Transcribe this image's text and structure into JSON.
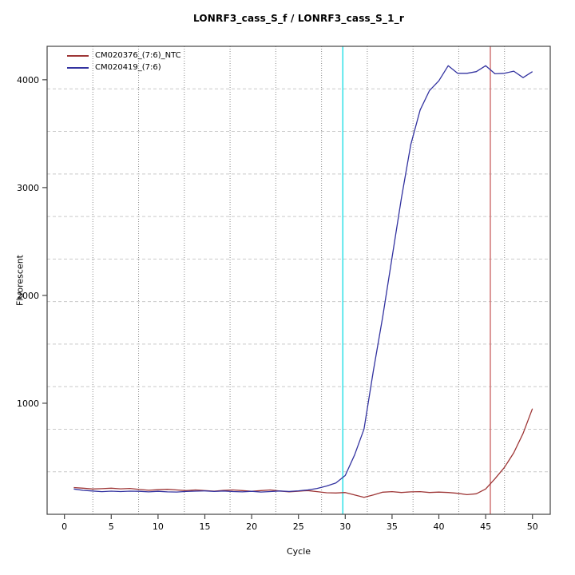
{
  "chart_data": {
    "type": "line",
    "title": "LONRF3_cass_S_f / LONRF3_cass_S_1_r",
    "xlabel": "Cycle",
    "ylabel": "Fluorescent",
    "xlim": [
      -1.85,
      51.9
    ],
    "ylim": [
      -30,
      4310
    ],
    "xticks": [
      0,
      5,
      10,
      15,
      20,
      25,
      30,
      35,
      40,
      45,
      50
    ],
    "yticks": [
      1000,
      2000,
      3000,
      4000
    ],
    "grid": {
      "shown": true,
      "nx_cells": 11,
      "ny_cells": 11,
      "vertical_style": "dotted",
      "horizontal_style": "dashed",
      "vertical_color": "#8a8a8a",
      "horizontal_color": "#c9c9c9"
    },
    "legend_position": "top-left",
    "x": [
      1,
      2,
      3,
      4,
      5,
      6,
      7,
      8,
      9,
      10,
      11,
      12,
      13,
      14,
      15,
      16,
      17,
      18,
      19,
      20,
      21,
      22,
      23,
      24,
      25,
      26,
      27,
      28,
      29,
      30,
      31,
      32,
      33,
      34,
      35,
      36,
      37,
      38,
      39,
      40,
      41,
      42,
      43,
      44,
      45,
      46,
      47,
      48,
      49,
      50
    ],
    "series": [
      {
        "name": "CM020376_(7:6)_NTC",
        "color": "#9e3636",
        "values": [
          218,
          212,
          205,
          208,
          212,
          206,
          210,
          200,
          193,
          198,
          202,
          196,
          190,
          196,
          190,
          185,
          192,
          196,
          190,
          183,
          190,
          196,
          186,
          178,
          184,
          190,
          180,
          170,
          168,
          172,
          150,
          128,
          150,
          175,
          180,
          172,
          178,
          180,
          172,
          176,
          172,
          165,
          152,
          160,
          205,
          300,
          405,
          540,
          720,
          950
        ]
      },
      {
        "name": "CM020419_(7:6)",
        "color": "#3333a0",
        "values": [
          205,
          192,
          186,
          180,
          185,
          181,
          185,
          183,
          178,
          183,
          178,
          177,
          182,
          185,
          187,
          182,
          186,
          181,
          178,
          183,
          177,
          181,
          186,
          182,
          188,
          196,
          210,
          232,
          260,
          330,
          520,
          760,
          1300,
          1800,
          2350,
          2900,
          3400,
          3720,
          3900,
          3990,
          4130,
          4060,
          4060,
          4075,
          4130,
          4055,
          4060,
          4080,
          4020,
          4075
        ]
      }
    ],
    "vlines": [
      {
        "name": "threshold-cycle-line",
        "x": 29.74,
        "color": "#22dfe6"
      },
      {
        "name": "ntc-cycle-line",
        "x": 45.5,
        "color": "#cd6b6b"
      }
    ],
    "axis_color": "#444444",
    "tick_label_color": "#000000",
    "background_color": "#ffffff"
  }
}
